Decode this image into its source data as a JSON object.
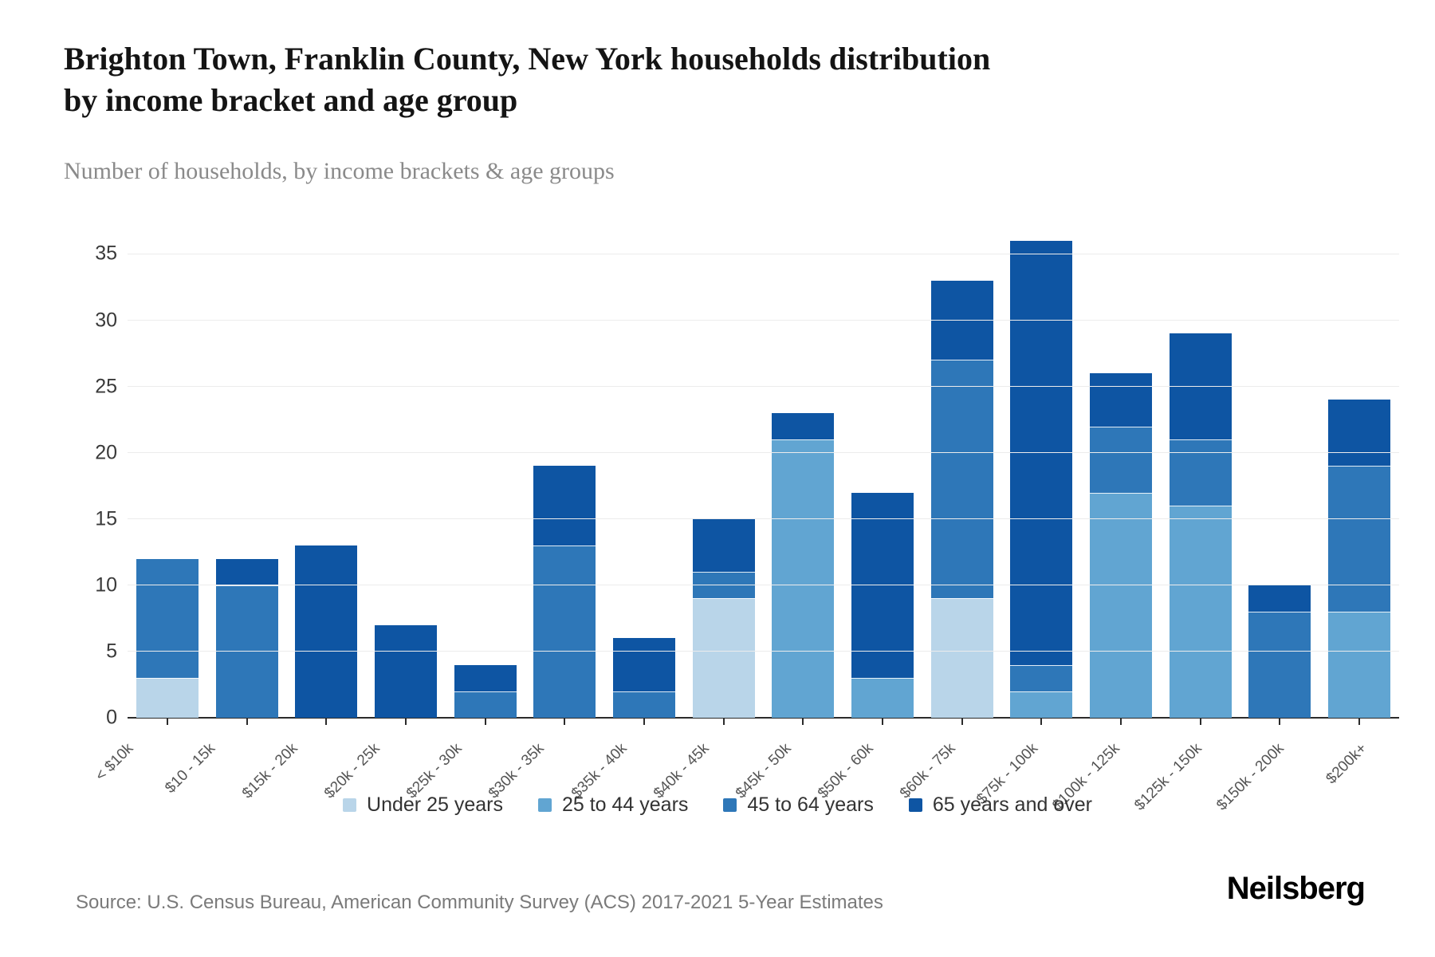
{
  "header": {
    "title_lines": [
      "Brighton Town, Franklin County, New York households distribution",
      "by income bracket and age group"
    ],
    "subtitle": "Number of households, by income brackets & age groups"
  },
  "chart_data": {
    "type": "bar",
    "stacked": true,
    "title": "Brighton Town, Franklin County, New York households distribution by income bracket and age group",
    "subtitle": "Number of households, by income brackets & age groups",
    "xlabel": "",
    "ylabel": "",
    "ylim": [
      0,
      36
    ],
    "ytick_step": 5,
    "yticks": [
      0,
      5,
      10,
      15,
      20,
      25,
      30,
      35
    ],
    "grid": true,
    "legend_position": "bottom",
    "categories": [
      "< $10k",
      "$10 - 15k",
      "$15k - 20k",
      "$20k - 25k",
      "$25k - 30k",
      "$30k - 35k",
      "$35k - 40k",
      "$40k - 45k",
      "$45k - 50k",
      "$50k - 60k",
      "$60k - 75k",
      "$75k - 100k",
      "$100k - 125k",
      "$125k - 150k",
      "$150k - 200k",
      "$200k+"
    ],
    "series": [
      {
        "name": "Under 25 years",
        "color": "#b9d5e9",
        "values": [
          3,
          0,
          0,
          0,
          0,
          0,
          0,
          9,
          0,
          0,
          9,
          0,
          0,
          0,
          0,
          0
        ]
      },
      {
        "name": "25 to 44 years",
        "color": "#61a5d2",
        "values": [
          0,
          0,
          0,
          0,
          0,
          0,
          0,
          0,
          21,
          3,
          0,
          2,
          17,
          16,
          0,
          8
        ]
      },
      {
        "name": "45 to 64 years",
        "color": "#2e77b8",
        "values": [
          9,
          10,
          0,
          0,
          2,
          13,
          2,
          2,
          0,
          0,
          18,
          2,
          5,
          5,
          8,
          11
        ]
      },
      {
        "name": "65 years and over",
        "color": "#0e55a3",
        "values": [
          0,
          2,
          13,
          7,
          2,
          6,
          4,
          4,
          2,
          14,
          6,
          32,
          4,
          8,
          2,
          5
        ]
      }
    ],
    "totals": [
      12,
      12,
      13,
      7,
      4,
      19,
      6,
      15,
      23,
      17,
      33,
      36,
      26,
      29,
      10,
      24
    ]
  },
  "footer": {
    "source": "Source: U.S. Census Bureau, American Community Survey (ACS) 2017-2021 5-Year Estimates",
    "logo": "Neilsberg"
  }
}
